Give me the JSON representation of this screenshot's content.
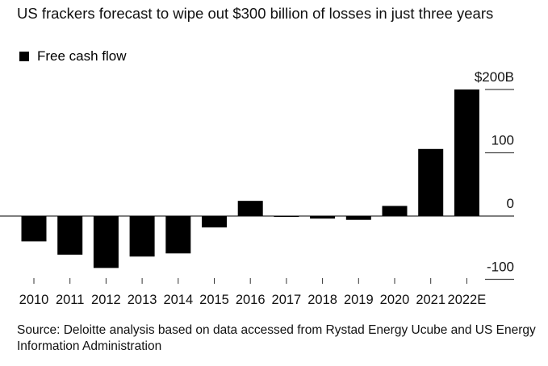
{
  "title": "US frackers forecast to wipe out $300 billion of losses in just three years",
  "legend": [
    {
      "label": "Free cash flow",
      "color": "#000000"
    }
  ],
  "source": "Source: Deloitte analysis based on data accessed from Rystad Energy Ucube and US Energy Information Administration",
  "chart_data": {
    "type": "bar",
    "title": "US frackers forecast to wipe out $300 billion of losses in just three years",
    "xlabel": "",
    "ylabel": "",
    "categories": [
      "2010",
      "2011",
      "2012",
      "2013",
      "2014",
      "2015",
      "2016",
      "2017",
      "2018",
      "2019",
      "2020",
      "2021",
      "2022E"
    ],
    "series": [
      {
        "name": "Free cash flow",
        "color": "#000000",
        "values": [
          -40,
          -61,
          -82,
          -64,
          -59,
          -18,
          24,
          -1,
          -4,
          -6,
          16,
          106,
          200
        ]
      }
    ],
    "ylim": [
      -100,
      200
    ],
    "yticks": [
      -100,
      0,
      100,
      200
    ],
    "ytick_labels": [
      "-100",
      "0",
      "100",
      "$200B"
    ],
    "grid": true,
    "legend_position": "top-left",
    "units": "billion USD"
  }
}
